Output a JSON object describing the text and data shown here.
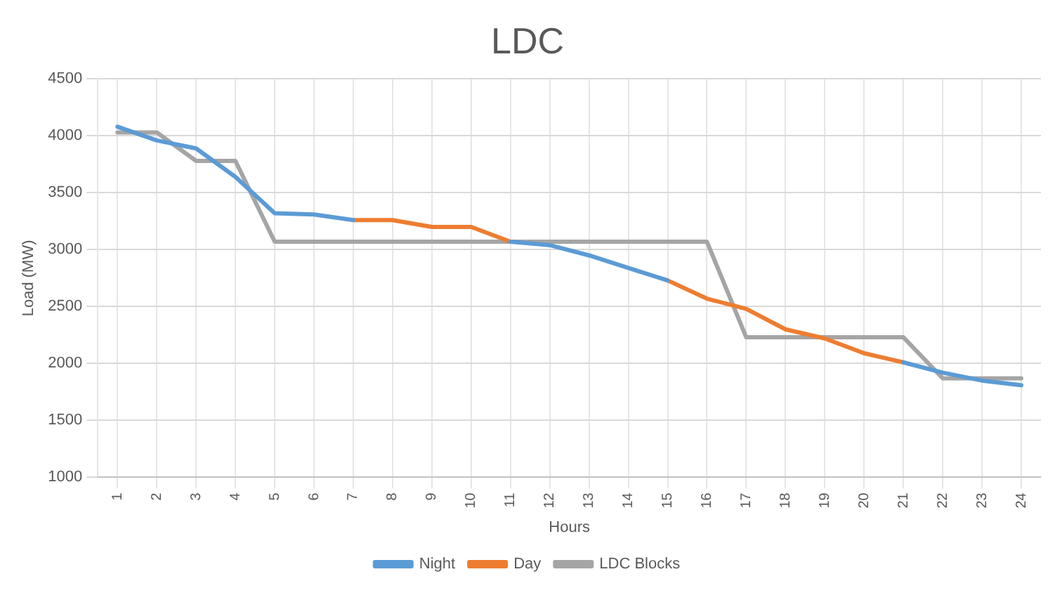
{
  "chart_data": {
    "type": "line",
    "title": "LDC",
    "xlabel": "Hours",
    "ylabel": "Load (MW)",
    "categories": [
      "1",
      "2",
      "3",
      "4",
      "5",
      "6",
      "7",
      "8",
      "9",
      "10",
      "11",
      "12",
      "13",
      "14",
      "15",
      "16",
      "17",
      "18",
      "19",
      "20",
      "21",
      "22",
      "23",
      "24"
    ],
    "series": [
      {
        "name": "Night",
        "color": "#5b9bd5",
        "values": [
          4080,
          3960,
          3890,
          3640,
          3320,
          3310,
          3260,
          null,
          null,
          null,
          3070,
          3040,
          2950,
          2840,
          2730,
          null,
          null,
          null,
          null,
          null,
          2010,
          1920,
          1850,
          1810
        ]
      },
      {
        "name": "Day",
        "color": "#ed7d31",
        "values": [
          null,
          null,
          null,
          null,
          null,
          null,
          3260,
          3260,
          3200,
          3200,
          3070,
          null,
          null,
          null,
          2730,
          2570,
          2480,
          2300,
          2220,
          2090,
          2010,
          null,
          null,
          null
        ]
      },
      {
        "name": "LDC Blocks",
        "color": "#a5a5a5",
        "values": [
          4030,
          4030,
          3780,
          3780,
          3070,
          3070,
          3070,
          3070,
          3070,
          3070,
          3070,
          3070,
          3070,
          3070,
          3070,
          3070,
          2230,
          2230,
          2230,
          2230,
          2230,
          1870,
          1870,
          1870
        ]
      }
    ],
    "ylim": [
      1000,
      4500
    ],
    "yticks": [
      1000,
      1500,
      2000,
      2500,
      3000,
      3500,
      4000,
      4500
    ],
    "grid": true,
    "legend": "bottom",
    "marker": "none",
    "line_style": "solid"
  }
}
